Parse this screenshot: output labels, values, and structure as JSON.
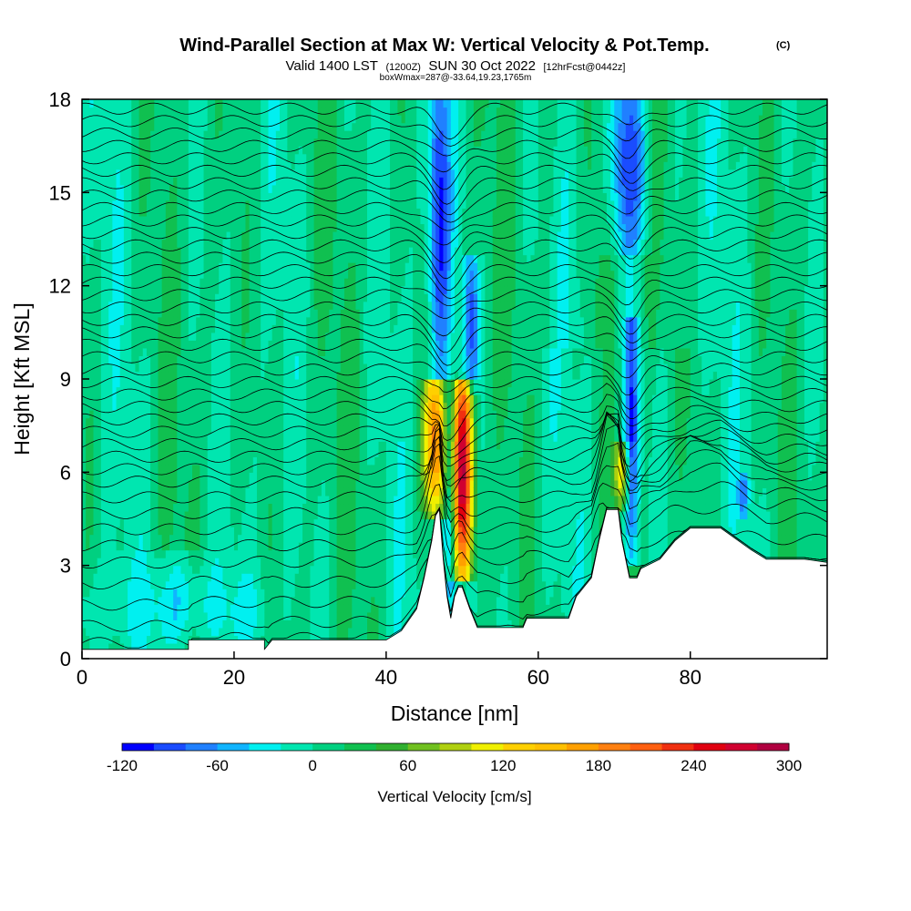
{
  "header": {
    "title": "Wind-Parallel Section at Max W: Vertical Velocity & Pot.Temp.",
    "copyright": "(C)",
    "valid_prefix": "Valid 1400 LST",
    "valid_utc": "(1200Z)",
    "valid_date": "SUN 30 Oct 2022",
    "forecast": "[12hrFcst@0442z]",
    "box_info": "boxWmax=287@-33.64,19.23,1765m"
  },
  "chart_data": {
    "type": "heatmap",
    "title": "Wind-Parallel Section at Max W: Vertical Velocity & Pot.Temp.",
    "xlabel": "Distance [nm]",
    "ylabel": "Height [Kft MSL]",
    "xlim": [
      0,
      98
    ],
    "ylim": [
      0,
      18
    ],
    "x_ticks": [
      0,
      20,
      40,
      60,
      80
    ],
    "y_ticks": [
      0,
      3,
      6,
      9,
      12,
      15,
      18
    ],
    "colorbar": {
      "label": "Vertical Velocity [cm/s]",
      "ticks": [
        -120,
        -60,
        0,
        60,
        120,
        180,
        240,
        300
      ],
      "levels": [
        -120,
        -100,
        -80,
        -60,
        -40,
        -20,
        0,
        20,
        40,
        60,
        80,
        100,
        120,
        140,
        160,
        180,
        200,
        220,
        240,
        260,
        280,
        300
      ],
      "colors": [
        "#0000ff",
        "#1a4cff",
        "#2080ff",
        "#10b4ff",
        "#00f0f0",
        "#00e6b0",
        "#00d080",
        "#10c050",
        "#30b030",
        "#70c020",
        "#b0d010",
        "#f0f000",
        "#ffd000",
        "#ffc000",
        "#ffa000",
        "#ff8010",
        "#ff6010",
        "#f03010",
        "#e00010",
        "#d00030",
        "#b00040"
      ]
    },
    "terrain_kft": [
      [
        0,
        0.3
      ],
      [
        14,
        0.3
      ],
      [
        14,
        0.6
      ],
      [
        24,
        0.6
      ],
      [
        24,
        0.3
      ],
      [
        25,
        0.6
      ],
      [
        30,
        0.6
      ],
      [
        40,
        0.6
      ],
      [
        42,
        0.9
      ],
      [
        44,
        1.6
      ],
      [
        45,
        2.6
      ],
      [
        46,
        3.8
      ],
      [
        46.5,
        4.6
      ],
      [
        47,
        4.8
      ],
      [
        47.5,
        3.2
      ],
      [
        48,
        2.0
      ],
      [
        48.5,
        1.3
      ],
      [
        49,
        2.0
      ],
      [
        49.5,
        2.3
      ],
      [
        50,
        2.3
      ],
      [
        51,
        1.6
      ],
      [
        52,
        1.0
      ],
      [
        58,
        1.0
      ],
      [
        58.5,
        1.3
      ],
      [
        64,
        1.3
      ],
      [
        65,
        2.0
      ],
      [
        66,
        2.3
      ],
      [
        67,
        2.6
      ],
      [
        68,
        3.8
      ],
      [
        69,
        4.8
      ],
      [
        70.5,
        4.8
      ],
      [
        71,
        3.8
      ],
      [
        72,
        2.6
      ],
      [
        73,
        2.6
      ],
      [
        73.5,
        2.9
      ],
      [
        76,
        3.2
      ],
      [
        78,
        3.8
      ],
      [
        80,
        4.2
      ],
      [
        84,
        4.2
      ],
      [
        88,
        3.5
      ],
      [
        90,
        3.2
      ],
      [
        95,
        3.2
      ],
      [
        98,
        3.1
      ]
    ],
    "features": [
      {
        "x": 46.5,
        "center_kft": 7.0,
        "width_nm": 1.6,
        "w": 180,
        "zmin": 4.5,
        "zmax": 9.0
      },
      {
        "x": 50.0,
        "center_kft": 6.0,
        "width_nm": 1.4,
        "w": 287,
        "zmin": 2.5,
        "zmax": 9.0
      },
      {
        "x": 47.0,
        "center_kft": 14.0,
        "width_nm": 1.4,
        "w": -110,
        "zmin": 9.0,
        "zmax": 18.0
      },
      {
        "x": 48.5,
        "center_kft": 5.0,
        "width_nm": 1.0,
        "w": -100,
        "zmin": 1.3,
        "zmax": 9.0
      },
      {
        "x": 51.2,
        "center_kft": 11.0,
        "width_nm": 1.0,
        "w": -90,
        "zmin": 8.5,
        "zmax": 13.0
      },
      {
        "x": 71.0,
        "center_kft": 6.0,
        "width_nm": 1.0,
        "w": 120,
        "zmin": 4.8,
        "zmax": 7.0
      },
      {
        "x": 72.3,
        "center_kft": 7.0,
        "width_nm": 1.0,
        "w": -110,
        "zmin": 3.0,
        "zmax": 11.0
      },
      {
        "x": 72.0,
        "center_kft": 16.0,
        "width_nm": 2.6,
        "w": -80,
        "zmin": 13.0,
        "zmax": 18.0
      },
      {
        "x": 13.0,
        "center_kft": 2.0,
        "width_nm": 3.0,
        "w": -40,
        "zmin": 0.3,
        "zmax": 3.5
      },
      {
        "x": 87.0,
        "center_kft": 5.3,
        "width_nm": 0.7,
        "w": -70,
        "zmin": 4.5,
        "zmax": 6.0
      }
    ],
    "isentropes_kft": [
      0.9,
      1.4,
      2.0,
      2.6,
      3.2,
      3.7,
      4.2,
      4.7,
      5.2,
      5.7,
      6.1,
      6.5,
      6.9,
      7.3,
      7.7,
      8.1,
      8.5,
      8.9,
      9.3,
      9.7,
      10.1,
      10.5,
      10.9,
      11.3,
      11.7,
      12.1,
      12.5,
      12.9,
      13.3,
      13.7,
      14.1,
      14.5,
      14.9,
      15.3,
      15.7,
      16.1,
      16.5,
      16.9,
      17.3,
      17.7
    ]
  }
}
